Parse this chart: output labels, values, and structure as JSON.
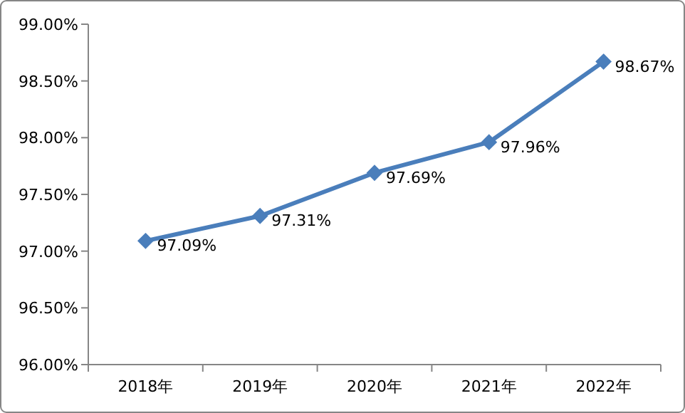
{
  "chart_data": {
    "type": "line",
    "categories": [
      "2018年",
      "2019年",
      "2020年",
      "2021年",
      "2022年"
    ],
    "values": [
      97.09,
      97.31,
      97.69,
      97.96,
      98.67
    ],
    "value_labels": [
      "97.09%",
      "97.31%",
      "97.69%",
      "97.96%",
      "98.67%"
    ],
    "color": "#4a7ebb",
    "marker": "diamond",
    "ylim": [
      96,
      99
    ],
    "yticks": [
      {
        "value": 96,
        "label": "96.00%"
      },
      {
        "value": 96.5,
        "label": "96.50%"
      },
      {
        "value": 97,
        "label": "97.00%"
      },
      {
        "value": 97.5,
        "label": "97.50%"
      },
      {
        "value": 98,
        "label": "98.00%"
      },
      {
        "value": 98.5,
        "label": "98.50%"
      },
      {
        "value": 99,
        "label": "99.00%"
      }
    ]
  }
}
